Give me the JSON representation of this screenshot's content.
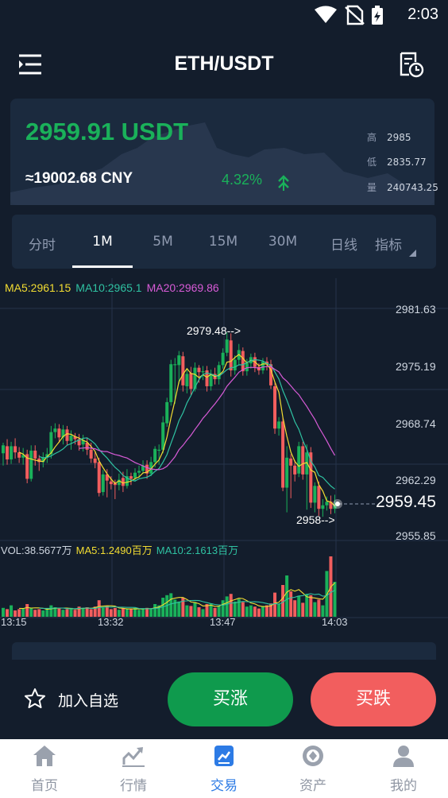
{
  "status": {
    "time": "2:03"
  },
  "header": {
    "title": "ETH/USDT"
  },
  "ticker": {
    "price": "2959.91 USDT",
    "cny": "≈19002.68 CNY",
    "change": "4.32%",
    "stats": [
      {
        "label": "高",
        "value": "2985"
      },
      {
        "label": "低",
        "value": "2835.77"
      },
      {
        "label": "量",
        "value": "240743.25"
      }
    ],
    "colors": {
      "up": "#1ab15a"
    }
  },
  "tabs": [
    {
      "label": "分时",
      "active": false
    },
    {
      "label": "1M",
      "active": true
    },
    {
      "label": "5M",
      "active": false
    },
    {
      "label": "15M",
      "active": false
    },
    {
      "label": "30M",
      "active": false
    },
    {
      "label": "日线",
      "active": false
    },
    {
      "label": "指标",
      "active": false
    }
  ],
  "chart_data": {
    "type": "candlestick",
    "ma_legend": {
      "ma5": "MA5:2961.15",
      "ma10": "MA10:2965.1",
      "ma20": "MA20:2969.86"
    },
    "y_ticks": [
      "2981.63",
      "2975.19",
      "2968.74",
      "2962.29",
      "2955.85"
    ],
    "last_price": "2959.45",
    "high_annotation": "2979.48-->",
    "low_annotation": "2958-->",
    "volume_legend": {
      "vol": "VOL:38.5677万",
      "ma5": "MA5:1.2490百万",
      "ma10": "MA10:2.1613百万"
    },
    "x_ticks": [
      "13:15",
      "13:32",
      "13:47",
      "14:03"
    ],
    "ylim": [
      2955.85,
      2981.63
    ],
    "colors": {
      "up": "#1ab15a",
      "down": "#f25e5e",
      "ma5": "#f3dd32",
      "ma10": "#2fc2a2",
      "ma20": "#d85bd7"
    },
    "candles": [
      [
        2965.2,
        2966.1,
        2963.8,
        2966.4
      ],
      [
        2966.0,
        2964.5,
        2963.9,
        2966.8
      ],
      [
        2964.5,
        2966.0,
        2964.0,
        2966.5
      ],
      [
        2966.0,
        2965.3,
        2964.6,
        2966.9
      ],
      [
        2965.3,
        2964.7,
        2964.1,
        2965.9
      ],
      [
        2964.7,
        2965.0,
        2963.9,
        2965.8
      ],
      [
        2965.1,
        2962.3,
        2961.8,
        2965.6
      ],
      [
        2962.3,
        2965.5,
        2962.0,
        2966.1
      ],
      [
        2965.5,
        2964.6,
        2963.8,
        2966.1
      ],
      [
        2964.6,
        2964.2,
        2963.2,
        2965.0
      ],
      [
        2964.2,
        2964.7,
        2963.6,
        2965.3
      ],
      [
        2964.7,
        2965.1,
        2964.1,
        2965.8
      ],
      [
        2965.1,
        2967.6,
        2964.6,
        2968.3
      ],
      [
        2967.6,
        2968.0,
        2966.9,
        2968.6
      ],
      [
        2968.0,
        2967.0,
        2966.4,
        2968.5
      ],
      [
        2967.0,
        2967.9,
        2966.2,
        2968.4
      ],
      [
        2967.9,
        2966.6,
        2966.1,
        2968.3
      ],
      [
        2966.6,
        2967.2,
        2965.6,
        2967.8
      ],
      [
        2967.1,
        2966.8,
        2966.2,
        2967.5
      ],
      [
        2966.8,
        2966.1,
        2965.5,
        2967.4
      ],
      [
        2966.2,
        2966.7,
        2965.4,
        2967.3
      ],
      [
        2966.4,
        2965.6,
        2965.0,
        2966.9
      ],
      [
        2965.6,
        2964.6,
        2964.1,
        2966.4
      ],
      [
        2964.6,
        2964.1,
        2963.5,
        2965.4
      ],
      [
        2964.2,
        2960.7,
        2960.3,
        2964.7
      ],
      [
        2960.8,
        2962.8,
        2960.4,
        2963.3
      ],
      [
        2962.8,
        2962.1,
        2960.2,
        2963.4
      ],
      [
        2962.0,
        2961.7,
        2961.1,
        2962.6
      ],
      [
        2961.8,
        2961.6,
        2960.0,
        2962.2
      ],
      [
        2961.6,
        2962.2,
        2961.0,
        2962.9
      ],
      [
        2962.4,
        2961.5,
        2960.8,
        2963.1
      ],
      [
        2961.5,
        2962.6,
        2961.2,
        2963.4
      ],
      [
        2962.6,
        2962.3,
        2961.6,
        2963.0
      ],
      [
        2962.4,
        2963.0,
        2962.0,
        2963.5
      ],
      [
        2963.0,
        2963.2,
        2962.4,
        2963.8
      ],
      [
        2963.2,
        2963.8,
        2962.9,
        2964.4
      ],
      [
        2963.9,
        2962.9,
        2962.3,
        2964.4
      ],
      [
        2962.9,
        2964.2,
        2962.6,
        2964.8
      ],
      [
        2964.2,
        2965.7,
        2963.6,
        2966.0
      ],
      [
        2965.6,
        2965.6,
        2963.9,
        2966.2
      ],
      [
        2965.6,
        2968.7,
        2965.2,
        2969.4
      ],
      [
        2968.6,
        2971.0,
        2968.2,
        2971.5
      ],
      [
        2971.0,
        2975.3,
        2970.6,
        2975.8
      ],
      [
        2975.2,
        2975.3,
        2970.8,
        2976.0
      ],
      [
        2975.2,
        2976.3,
        2973.1,
        2976.8
      ],
      [
        2976.2,
        2972.9,
        2972.2,
        2976.7
      ],
      [
        2972.8,
        2974.2,
        2972.0,
        2974.8
      ],
      [
        2974.3,
        2972.5,
        2971.8,
        2975.0
      ],
      [
        2972.5,
        2974.9,
        2972.2,
        2975.5
      ],
      [
        2974.9,
        2974.4,
        2973.2,
        2975.2
      ],
      [
        2974.5,
        2974.5,
        2973.5,
        2975.1
      ],
      [
        2974.6,
        2972.8,
        2972.2,
        2975.1
      ],
      [
        2972.8,
        2974.2,
        2972.3,
        2974.7
      ],
      [
        2974.2,
        2973.6,
        2973.0,
        2974.9
      ],
      [
        2973.6,
        2975.2,
        2973.0,
        2975.6
      ],
      [
        2975.2,
        2976.6,
        2974.8,
        2977.1
      ],
      [
        2976.6,
        2978.1,
        2976.2,
        2978.9
      ],
      [
        2978.0,
        2974.6,
        2973.9,
        2978.8
      ],
      [
        2974.6,
        2975.8,
        2974.1,
        2976.3
      ],
      [
        2975.8,
        2976.9,
        2975.2,
        2977.6
      ],
      [
        2976.8,
        2974.5,
        2974.0,
        2977.2
      ],
      [
        2974.5,
        2975.4,
        2974.0,
        2975.9
      ],
      [
        2975.4,
        2976.1,
        2974.8,
        2976.5
      ],
      [
        2976.1,
        2975.0,
        2974.4,
        2976.6
      ],
      [
        2975.0,
        2974.6,
        2974.1,
        2975.4
      ],
      [
        2974.6,
        2975.6,
        2974.2,
        2976.0
      ],
      [
        2975.6,
        2975.3,
        2974.6,
        2976.1
      ],
      [
        2975.3,
        2972.9,
        2972.5,
        2975.8
      ],
      [
        2972.8,
        2968.0,
        2967.4,
        2973.2
      ],
      [
        2968.0,
        2968.8,
        2967.2,
        2969.3
      ],
      [
        2968.8,
        2961.3,
        2960.9,
        2969.3
      ],
      [
        2961.3,
        2964.7,
        2958.5,
        2966.0
      ],
      [
        2964.6,
        2963.8,
        2960.1,
        2965.1
      ],
      [
        2963.8,
        2962.8,
        2962.0,
        2964.4
      ],
      [
        2962.9,
        2966.0,
        2962.5,
        2966.5
      ],
      [
        2966.0,
        2962.8,
        2962.2,
        2966.5
      ],
      [
        2962.8,
        2965.3,
        2958.8,
        2966.2
      ],
      [
        2965.3,
        2959.6,
        2959.0,
        2965.9
      ],
      [
        2959.6,
        2961.5,
        2958.5,
        2961.9
      ],
      [
        2961.5,
        2958.9,
        2958.1,
        2962.0
      ],
      [
        2958.9,
        2959.3,
        2958.0,
        2960.0
      ],
      [
        2959.3,
        2959.7,
        2958.7,
        2960.3
      ],
      [
        2959.7,
        2958.9,
        2958.3,
        2960.4
      ],
      [
        2958.9,
        2959.4,
        2958.4,
        2960.5
      ]
    ],
    "volumes": [
      0.14,
      0.12,
      0.18,
      0.1,
      0.12,
      0.13,
      0.2,
      0.14,
      0.11,
      0.12,
      0.1,
      0.12,
      0.18,
      0.15,
      0.13,
      0.11,
      0.12,
      0.14,
      0.11,
      0.16,
      0.13,
      0.15,
      0.12,
      0.16,
      0.26,
      0.15,
      0.17,
      0.12,
      0.14,
      0.11,
      0.13,
      0.12,
      0.12,
      0.14,
      0.11,
      0.13,
      0.14,
      0.12,
      0.2,
      0.18,
      0.3,
      0.34,
      0.37,
      0.27,
      0.24,
      0.3,
      0.18,
      0.17,
      0.23,
      0.15,
      0.12,
      0.2,
      0.21,
      0.14,
      0.17,
      0.26,
      0.32,
      0.36,
      0.24,
      0.28,
      0.23,
      0.16,
      0.18,
      0.16,
      0.13,
      0.17,
      0.18,
      0.21,
      0.38,
      0.2,
      0.5,
      0.65,
      0.4,
      0.26,
      0.33,
      0.22,
      0.36,
      0.34,
      0.23,
      0.27,
      0.18,
      0.72,
      0.95,
      0.55
    ]
  },
  "actions": {
    "favorite": "加入自选",
    "buy": "买涨",
    "sell": "买跌",
    "colors": {
      "buy": "#0f9a4d",
      "sell": "#f25e5e"
    }
  },
  "nav": {
    "items": [
      {
        "label": "首页",
        "icon": "home-icon",
        "active": false
      },
      {
        "label": "行情",
        "icon": "chart-icon",
        "active": false
      },
      {
        "label": "交易",
        "icon": "trade-icon",
        "active": true
      },
      {
        "label": "资产",
        "icon": "assets-icon",
        "active": false
      },
      {
        "label": "我的",
        "icon": "profile-icon",
        "active": false
      }
    ],
    "colors": {
      "active": "#2d7be5",
      "inactive": "#8f96a3"
    }
  }
}
